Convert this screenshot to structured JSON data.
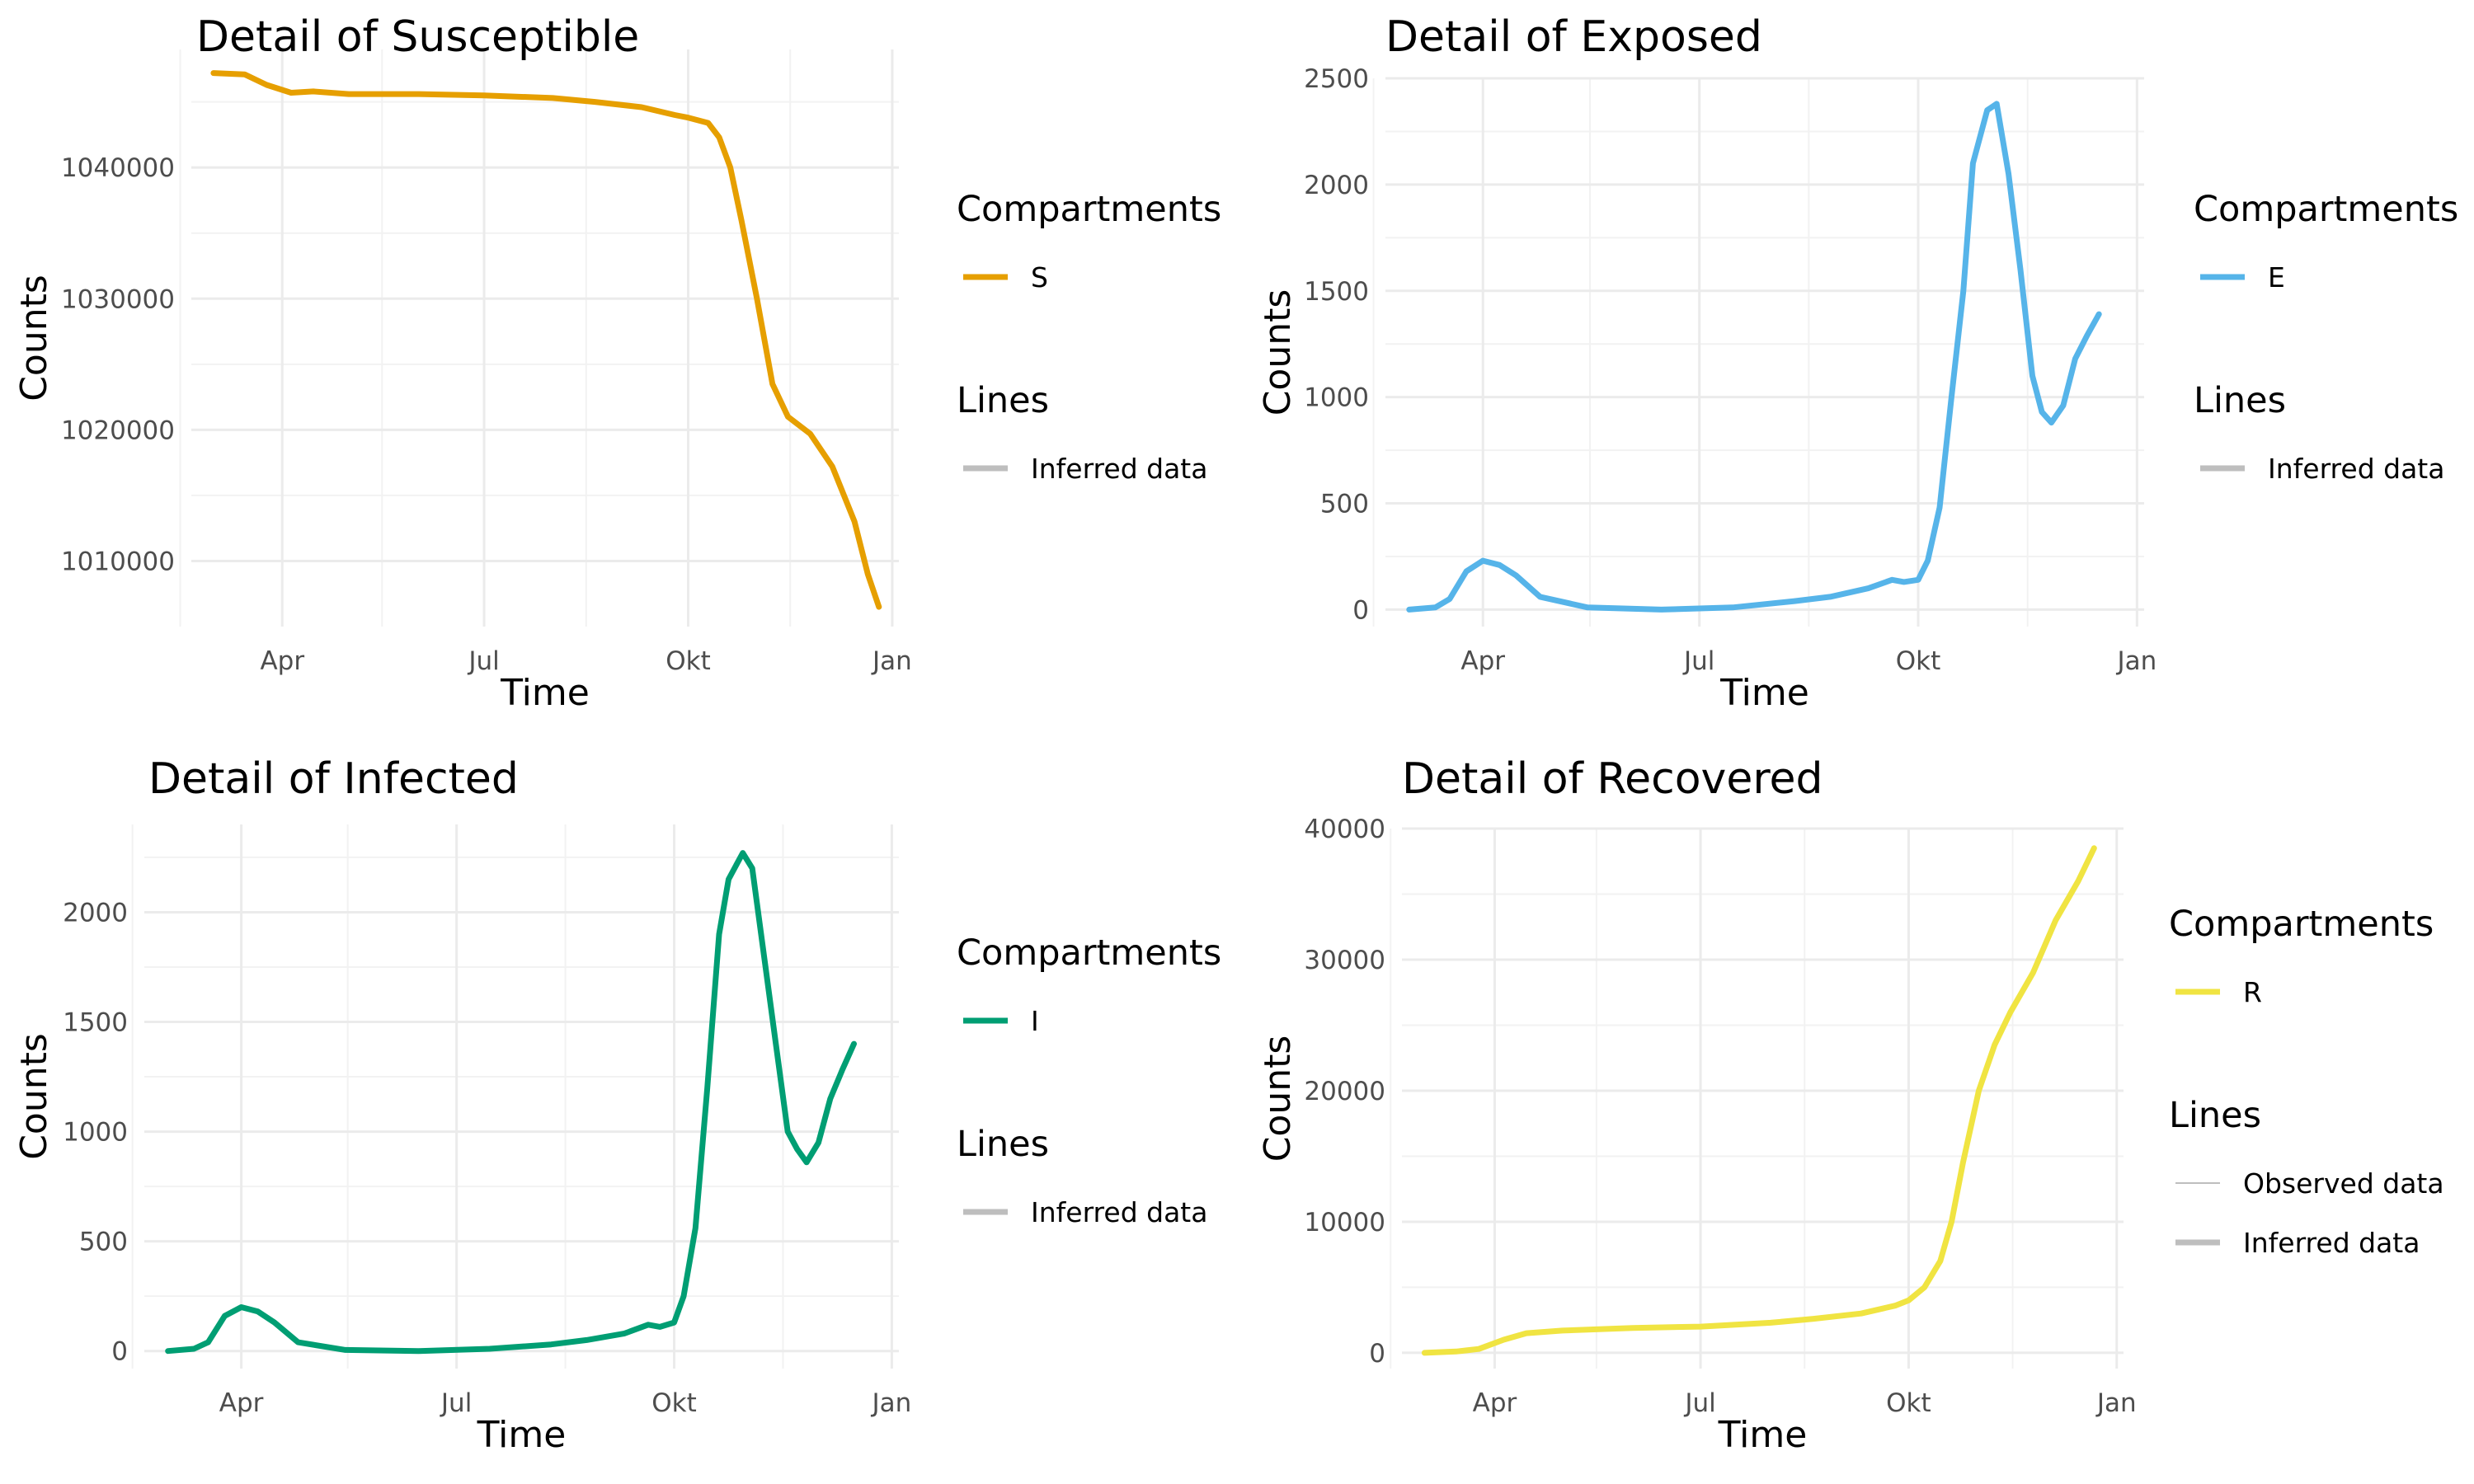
{
  "chart_data": [
    {
      "type": "line",
      "title": "Detail of Susceptible",
      "xlabel": "Time",
      "ylabel": "Counts",
      "x_ticks": [
        "Apr",
        "Jul",
        "Okt",
        "Jan"
      ],
      "y_ticks": [
        1010000,
        1020000,
        1030000,
        1040000
      ],
      "ylim": [
        1005000,
        1049000
      ],
      "grid": true,
      "legend": {
        "placement": "right",
        "groups": [
          {
            "title": "Compartments",
            "entries": [
              {
                "label": "S",
                "color": "#E69F00",
                "style": "thick"
              }
            ]
          },
          {
            "title": "Lines",
            "entries": [
              {
                "label": "Inferred data",
                "color": "#bebebe",
                "style": "thick"
              }
            ]
          }
        ]
      },
      "series": [
        {
          "name": "S",
          "color": "#E69F00",
          "x": [
            "2020-03-01",
            "2020-03-15",
            "2020-03-25",
            "2020-04-05",
            "2020-04-15",
            "2020-05-01",
            "2020-06-01",
            "2020-07-01",
            "2020-08-01",
            "2020-08-20",
            "2020-09-10",
            "2020-09-25",
            "2020-10-01",
            "2020-10-10",
            "2020-10-15",
            "2020-10-20",
            "2020-10-25",
            "2020-11-01",
            "2020-11-08",
            "2020-11-15",
            "2020-11-25",
            "2020-12-05",
            "2020-12-15",
            "2020-12-21",
            "2020-12-26"
          ],
          "values": [
            1047200,
            1047100,
            1046300,
            1045700,
            1045800,
            1045600,
            1045600,
            1045500,
            1045300,
            1045000,
            1044600,
            1044000,
            1043800,
            1043400,
            1042300,
            1040000,
            1036000,
            1030000,
            1023500,
            1021000,
            1019700,
            1017200,
            1013000,
            1009000,
            1006500
          ]
        }
      ]
    },
    {
      "type": "line",
      "title": "Detail of Exposed",
      "xlabel": "Time",
      "ylabel": "Counts",
      "x_ticks": [
        "Apr",
        "Jul",
        "Okt",
        "Jan"
      ],
      "y_ticks": [
        0,
        500,
        1000,
        1500,
        2000,
        2500
      ],
      "ylim": [
        -80,
        2500
      ],
      "grid": true,
      "legend": {
        "placement": "right",
        "groups": [
          {
            "title": "Compartments",
            "entries": [
              {
                "label": "E",
                "color": "#56B4E9",
                "style": "thick"
              }
            ]
          },
          {
            "title": "Lines",
            "entries": [
              {
                "label": "Inferred data",
                "color": "#bebebe",
                "style": "thick"
              }
            ]
          }
        ]
      },
      "series": [
        {
          "name": "E",
          "color": "#56B4E9",
          "x": [
            "2020-03-01",
            "2020-03-12",
            "2020-03-18",
            "2020-03-25",
            "2020-04-01",
            "2020-04-08",
            "2020-04-15",
            "2020-04-25",
            "2020-05-15",
            "2020-06-15",
            "2020-07-15",
            "2020-08-10",
            "2020-08-25",
            "2020-09-10",
            "2020-09-20",
            "2020-09-25",
            "2020-10-01",
            "2020-10-05",
            "2020-10-10",
            "2020-10-15",
            "2020-10-20",
            "2020-10-24",
            "2020-10-30",
            "2020-11-03",
            "2020-11-08",
            "2020-11-13",
            "2020-11-18",
            "2020-11-22",
            "2020-11-26",
            "2020-12-01",
            "2020-12-06",
            "2020-12-11",
            "2020-12-16"
          ],
          "values": [
            0,
            10,
            50,
            180,
            230,
            210,
            160,
            60,
            10,
            0,
            10,
            40,
            60,
            100,
            140,
            130,
            140,
            230,
            480,
            1000,
            1500,
            2100,
            2350,
            2380,
            2050,
            1600,
            1100,
            930,
            880,
            960,
            1180,
            1290,
            1390
          ]
        }
      ]
    },
    {
      "type": "line",
      "title": "Detail of Infected",
      "xlabel": "Time",
      "ylabel": "Counts",
      "x_ticks": [
        "Apr",
        "Jul",
        "Okt",
        "Jan"
      ],
      "y_ticks": [
        0,
        500,
        1000,
        1500,
        2000
      ],
      "ylim": [
        -80,
        2400
      ],
      "grid": true,
      "legend": {
        "placement": "right",
        "groups": [
          {
            "title": "Compartments",
            "entries": [
              {
                "label": "I",
                "color": "#009E73",
                "style": "thick"
              }
            ]
          },
          {
            "title": "Lines",
            "entries": [
              {
                "label": "Inferred data",
                "color": "#bebebe",
                "style": "thick"
              }
            ]
          }
        ]
      },
      "series": [
        {
          "name": "I",
          "color": "#009E73",
          "x": [
            "2020-03-01",
            "2020-03-12",
            "2020-03-18",
            "2020-03-25",
            "2020-04-01",
            "2020-04-08",
            "2020-04-15",
            "2020-04-25",
            "2020-05-15",
            "2020-06-15",
            "2020-07-15",
            "2020-08-10",
            "2020-08-25",
            "2020-09-10",
            "2020-09-20",
            "2020-09-25",
            "2020-10-01",
            "2020-10-05",
            "2020-10-10",
            "2020-10-15",
            "2020-10-20",
            "2020-10-24",
            "2020-10-30",
            "2020-11-03",
            "2020-11-08",
            "2020-11-13",
            "2020-11-18",
            "2020-11-22",
            "2020-11-26",
            "2020-12-01",
            "2020-12-06",
            "2020-12-11",
            "2020-12-16"
          ],
          "values": [
            0,
            10,
            40,
            160,
            200,
            180,
            130,
            40,
            5,
            0,
            10,
            30,
            50,
            80,
            120,
            110,
            130,
            250,
            560,
            1200,
            1900,
            2150,
            2270,
            2200,
            1800,
            1400,
            1000,
            920,
            860,
            950,
            1150,
            1280,
            1400
          ]
        }
      ]
    },
    {
      "type": "line",
      "title": "Detail of Recovered",
      "xlabel": "Time",
      "ylabel": "Counts",
      "x_ticks": [
        "Apr",
        "Jul",
        "Okt",
        "Jan"
      ],
      "y_ticks": [
        0,
        10000,
        20000,
        30000,
        40000
      ],
      "ylim": [
        -1200,
        40000
      ],
      "grid": true,
      "legend": {
        "placement": "right",
        "groups": [
          {
            "title": "Compartments",
            "entries": [
              {
                "label": "R",
                "color": "#F0E442",
                "style": "thick"
              }
            ]
          },
          {
            "title": "Lines",
            "entries": [
              {
                "label": "Observed data",
                "color": "#bebebe",
                "style": "thin"
              },
              {
                "label": "Inferred data",
                "color": "#bebebe",
                "style": "thick"
              }
            ]
          }
        ]
      },
      "series": [
        {
          "name": "R",
          "color": "#F0E442",
          "x": [
            "2020-03-01",
            "2020-03-15",
            "2020-03-25",
            "2020-04-05",
            "2020-04-15",
            "2020-05-01",
            "2020-06-01",
            "2020-07-01",
            "2020-08-01",
            "2020-08-20",
            "2020-09-10",
            "2020-09-25",
            "2020-10-01",
            "2020-10-08",
            "2020-10-15",
            "2020-10-20",
            "2020-10-25",
            "2020-11-01",
            "2020-11-08",
            "2020-11-15",
            "2020-11-25",
            "2020-12-05",
            "2020-12-15",
            "2020-12-22"
          ],
          "values": [
            0,
            100,
            300,
            1000,
            1500,
            1700,
            1900,
            2000,
            2300,
            2600,
            3000,
            3600,
            4000,
            5000,
            7000,
            10000,
            14500,
            20000,
            23500,
            26000,
            29000,
            33000,
            36000,
            38500
          ]
        }
      ]
    }
  ]
}
